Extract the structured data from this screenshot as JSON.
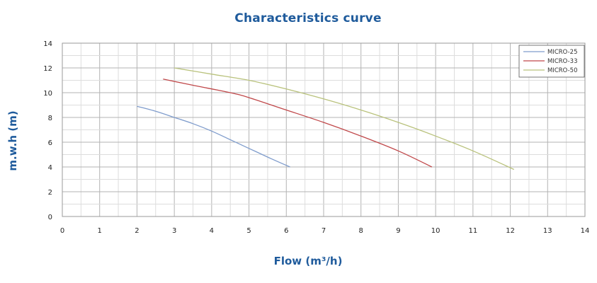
{
  "chart_data": {
    "type": "line",
    "title": "Characteristics curve",
    "xlabel": "Flow (m³/h)",
    "ylabel": "m.w.h (m)",
    "xlim": [
      0,
      14
    ],
    "ylim": [
      0,
      14
    ],
    "x_ticks": [
      "0",
      "1",
      "2",
      "3",
      "4",
      "5",
      "6",
      "7",
      "8",
      "9",
      "10",
      "11",
      "12",
      "13",
      "14"
    ],
    "y_ticks": [
      "0",
      "2",
      "4",
      "6",
      "8",
      "10",
      "12",
      "14"
    ],
    "grid": true,
    "legend_position": "top-right",
    "series": [
      {
        "name": "MICRO-25",
        "color": "#7f9ccc",
        "x": [
          2.0,
          2.5,
          3.0,
          3.5,
          4.0,
          4.5,
          5.0,
          5.5,
          6.1
        ],
        "y": [
          8.9,
          8.5,
          8.0,
          7.5,
          6.9,
          6.2,
          5.5,
          4.8,
          4.0
        ]
      },
      {
        "name": "MICRO-33",
        "color": "#c0484a",
        "x": [
          2.7,
          3.5,
          4.5,
          5.0,
          6.0,
          7.0,
          8.0,
          9.0,
          9.9
        ],
        "y": [
          11.1,
          10.6,
          10.0,
          9.6,
          8.6,
          7.6,
          6.5,
          5.3,
          4.0
        ]
      },
      {
        "name": "MICRO-50",
        "color": "#b9c27c",
        "x": [
          3.0,
          4.0,
          5.0,
          6.0,
          7.0,
          8.0,
          9.0,
          10.0,
          11.0,
          12.1
        ],
        "y": [
          12.0,
          11.5,
          11.0,
          10.3,
          9.5,
          8.6,
          7.6,
          6.5,
          5.3,
          3.8
        ]
      }
    ]
  }
}
